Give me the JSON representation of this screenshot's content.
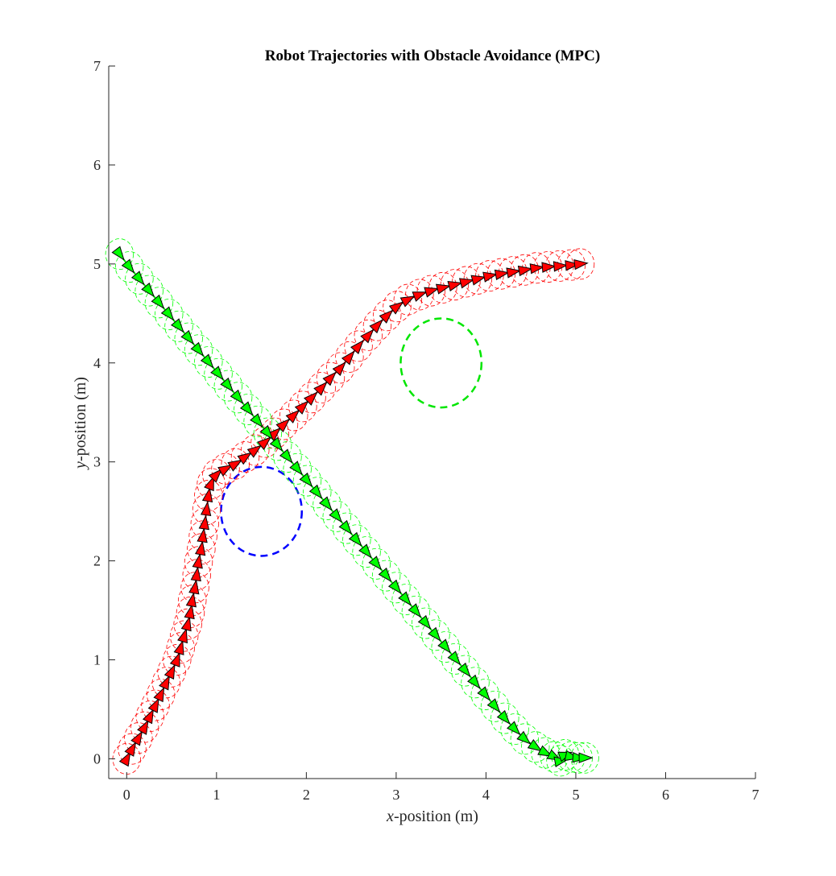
{
  "chart_data": {
    "type": "line",
    "title": "Robot Trajectories with Obstacle Avoidance (MPC)",
    "xlabel_var": "x",
    "xlabel_rest": "-position (m)",
    "ylabel_var": "y",
    "ylabel_rest": "-position (m)",
    "xlim": [
      -0.2,
      7
    ],
    "ylim": [
      -0.2,
      7
    ],
    "xticks": [
      0,
      1,
      2,
      3,
      4,
      5,
      6,
      7
    ],
    "yticks": [
      0,
      1,
      2,
      3,
      4,
      5,
      6,
      7
    ],
    "grid": false,
    "legend": "none",
    "robot_radius": 0.1,
    "series": [
      {
        "color": "#ff0000",
        "marker": "triangle",
        "points": [
          [
            0.0,
            0.0
          ],
          [
            0.06,
            0.1
          ],
          [
            0.13,
            0.21
          ],
          [
            0.2,
            0.32
          ],
          [
            0.26,
            0.43
          ],
          [
            0.32,
            0.54
          ],
          [
            0.38,
            0.65
          ],
          [
            0.44,
            0.77
          ],
          [
            0.5,
            0.88
          ],
          [
            0.56,
            1.0
          ],
          [
            0.6,
            1.12
          ],
          [
            0.64,
            1.24
          ],
          [
            0.68,
            1.36
          ],
          [
            0.71,
            1.48
          ],
          [
            0.73,
            1.6
          ],
          [
            0.76,
            1.73
          ],
          [
            0.78,
            1.86
          ],
          [
            0.8,
            1.99
          ],
          [
            0.83,
            2.12
          ],
          [
            0.85,
            2.25
          ],
          [
            0.87,
            2.38
          ],
          [
            0.89,
            2.52
          ],
          [
            0.91,
            2.66
          ],
          [
            0.94,
            2.78
          ],
          [
            1.0,
            2.87
          ],
          [
            1.1,
            2.93
          ],
          [
            1.21,
            2.98
          ],
          [
            1.32,
            3.05
          ],
          [
            1.43,
            3.12
          ],
          [
            1.54,
            3.2
          ],
          [
            1.65,
            3.29
          ],
          [
            1.75,
            3.38
          ],
          [
            1.86,
            3.47
          ],
          [
            1.96,
            3.56
          ],
          [
            2.06,
            3.65
          ],
          [
            2.17,
            3.75
          ],
          [
            2.27,
            3.85
          ],
          [
            2.38,
            3.95
          ],
          [
            2.48,
            4.06
          ],
          [
            2.58,
            4.17
          ],
          [
            2.69,
            4.28
          ],
          [
            2.79,
            4.38
          ],
          [
            2.9,
            4.48
          ],
          [
            3.01,
            4.57
          ],
          [
            3.13,
            4.64
          ],
          [
            3.26,
            4.69
          ],
          [
            3.39,
            4.73
          ],
          [
            3.52,
            4.76
          ],
          [
            3.65,
            4.79
          ],
          [
            3.78,
            4.82
          ],
          [
            3.91,
            4.85
          ],
          [
            4.04,
            4.88
          ],
          [
            4.17,
            4.9
          ],
          [
            4.3,
            4.92
          ],
          [
            4.43,
            4.94
          ],
          [
            4.56,
            4.96
          ],
          [
            4.69,
            4.97
          ],
          [
            4.82,
            4.98
          ],
          [
            4.95,
            4.99
          ],
          [
            5.05,
            5.0
          ]
        ]
      },
      {
        "color": "#00ff00",
        "marker": "triangle",
        "points": [
          [
            -0.08,
            5.1
          ],
          [
            0.03,
            4.97
          ],
          [
            0.14,
            4.85
          ],
          [
            0.25,
            4.73
          ],
          [
            0.36,
            4.61
          ],
          [
            0.47,
            4.49
          ],
          [
            0.58,
            4.37
          ],
          [
            0.69,
            4.25
          ],
          [
            0.8,
            4.13
          ],
          [
            0.91,
            4.01
          ],
          [
            1.02,
            3.89
          ],
          [
            1.13,
            3.77
          ],
          [
            1.24,
            3.65
          ],
          [
            1.35,
            3.53
          ],
          [
            1.46,
            3.41
          ],
          [
            1.57,
            3.29
          ],
          [
            1.68,
            3.17
          ],
          [
            1.79,
            3.05
          ],
          [
            1.9,
            2.93
          ],
          [
            2.01,
            2.81
          ],
          [
            2.12,
            2.69
          ],
          [
            2.23,
            2.57
          ],
          [
            2.34,
            2.45
          ],
          [
            2.45,
            2.33
          ],
          [
            2.56,
            2.21
          ],
          [
            2.67,
            2.09
          ],
          [
            2.78,
            1.97
          ],
          [
            2.89,
            1.85
          ],
          [
            3.0,
            1.73
          ],
          [
            3.11,
            1.61
          ],
          [
            3.22,
            1.49
          ],
          [
            3.33,
            1.37
          ],
          [
            3.44,
            1.25
          ],
          [
            3.55,
            1.13
          ],
          [
            3.66,
            1.01
          ],
          [
            3.77,
            0.89
          ],
          [
            3.88,
            0.77
          ],
          [
            3.99,
            0.65
          ],
          [
            4.1,
            0.53
          ],
          [
            4.21,
            0.41
          ],
          [
            4.32,
            0.3
          ],
          [
            4.43,
            0.2
          ],
          [
            4.55,
            0.12
          ],
          [
            4.66,
            0.06
          ],
          [
            4.76,
            0.02
          ],
          [
            4.83,
            -0.02
          ],
          [
            4.88,
            0.04
          ],
          [
            4.95,
            0.02
          ],
          [
            5.03,
            0.01
          ],
          [
            5.1,
            0.01
          ]
        ]
      }
    ],
    "obstacles": [
      {
        "center": [
          1.5,
          2.5
        ],
        "radius": 0.45,
        "color": "#0000ff"
      },
      {
        "center": [
          3.5,
          4.0
        ],
        "radius": 0.45,
        "color": "#00e600"
      }
    ]
  }
}
